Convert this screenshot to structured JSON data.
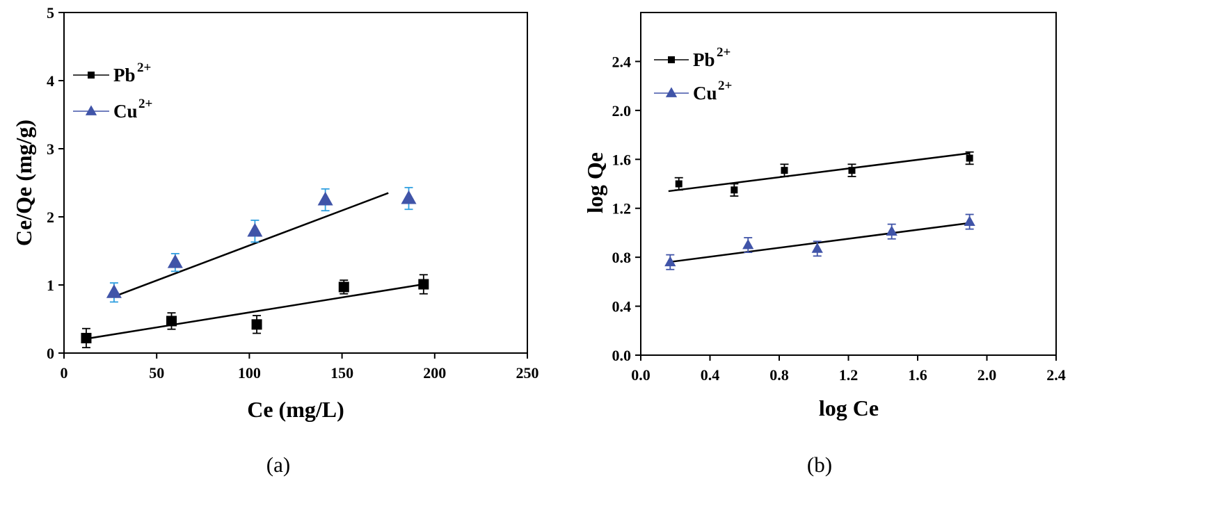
{
  "chart_data": [
    {
      "type": "scatter",
      "panel_label": "(a)",
      "title": "",
      "xlabel": "Ce (mg/L)",
      "ylabel": "Ce/Qe (mg/g)",
      "xlim": [
        0,
        250
      ],
      "ylim": [
        0,
        5
      ],
      "xticks": [
        "0",
        "50",
        "100",
        "150",
        "200",
        "250"
      ],
      "yticks": [
        "0",
        "1",
        "2",
        "3",
        "4",
        "5"
      ],
      "legend_position": "top-left",
      "series": [
        {
          "name": "Pb",
          "superscript": "2+",
          "color": "#000000",
          "error_color": "#000000",
          "marker": "square",
          "x": [
            12,
            58,
            104,
            151,
            194
          ],
          "y": [
            0.22,
            0.47,
            0.42,
            0.97,
            1.01
          ],
          "error": [
            0.14,
            0.12,
            0.13,
            0.1,
            0.14
          ],
          "fit": {
            "x": [
              12,
              194
            ],
            "y": [
              0.21,
              1.01
            ]
          }
        },
        {
          "name": "Cu",
          "superscript": "2+",
          "color": "#4054a8",
          "error_color": "#2f9fe0",
          "marker": "triangle",
          "x": [
            27,
            60,
            103,
            141,
            186
          ],
          "y": [
            0.89,
            1.33,
            1.79,
            2.25,
            2.27
          ],
          "error": [
            0.14,
            0.13,
            0.16,
            0.16,
            0.16
          ],
          "fit": {
            "x": [
              27,
              175
            ],
            "y": [
              0.83,
              2.35
            ]
          }
        }
      ]
    },
    {
      "type": "scatter",
      "panel_label": "(b)",
      "title": "",
      "xlabel": "log Ce",
      "ylabel": "log Qe",
      "xlim": [
        0,
        2.4
      ],
      "ylim": [
        0,
        2.8
      ],
      "xticks": [
        "0.0",
        "0.4",
        "0.8",
        "1.2",
        "1.6",
        "2.0",
        "2.4"
      ],
      "yticks": [
        "0.0",
        "0.4",
        "0.8",
        "1.2",
        "1.6",
        "2.0",
        "2.4"
      ],
      "legend_position": "top-left",
      "series": [
        {
          "name": "Pb",
          "superscript": "2+",
          "color": "#000000",
          "error_color": "#000000",
          "marker": "square",
          "x": [
            0.22,
            0.54,
            0.83,
            1.22,
            1.9
          ],
          "y": [
            1.4,
            1.35,
            1.51,
            1.51,
            1.61
          ],
          "error": [
            0.05,
            0.05,
            0.05,
            0.05,
            0.05
          ],
          "fit": {
            "x": [
              0.16,
              1.9
            ],
            "y": [
              1.34,
              1.65
            ]
          }
        },
        {
          "name": "Cu",
          "superscript": "2+",
          "color": "#4054a8",
          "error_color": "#4054a8",
          "marker": "triangle",
          "x": [
            0.17,
            0.62,
            1.02,
            1.45,
            1.9
          ],
          "y": [
            0.76,
            0.9,
            0.87,
            1.01,
            1.09
          ],
          "error": [
            0.06,
            0.06,
            0.06,
            0.06,
            0.06
          ],
          "fit": {
            "x": [
              0.16,
              1.9
            ],
            "y": [
              0.76,
              1.08
            ]
          }
        }
      ]
    }
  ]
}
